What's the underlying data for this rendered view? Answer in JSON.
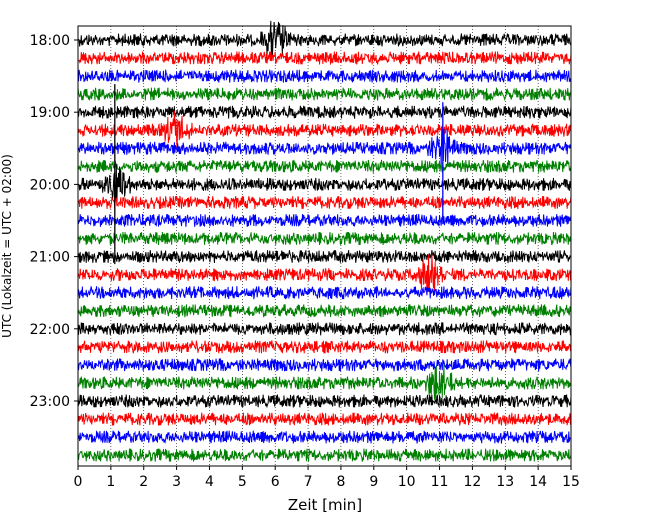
{
  "chart_data": {
    "type": "line",
    "title": "",
    "xlabel": "Zeit  [min]",
    "ylabel": "UTC (Lokalzeit = UTC + 02:00)",
    "xlim": [
      0,
      15
    ],
    "x_ticks": [
      "0",
      "1",
      "2",
      "3",
      "4",
      "5",
      "6",
      "7",
      "8",
      "9",
      "10",
      "11",
      "12",
      "13",
      "14",
      "15"
    ],
    "y_ticks": [
      "18:00",
      "19:00",
      "20:00",
      "21:00",
      "22:00",
      "23:00"
    ],
    "trace_start": "18:00",
    "trace_end": "23:45",
    "trace_interval_min": 15,
    "x_grid": "dotted",
    "color_cycle": [
      "#000000",
      "#ff0000",
      "#0000ff",
      "#008000"
    ],
    "events": [
      {
        "time": "20:00",
        "minute": 1.2,
        "color": "#000000"
      },
      {
        "time": "19:30",
        "minute": 11.1,
        "color": "#0000ff"
      },
      {
        "time": "19:15",
        "minute": 3.0,
        "color": "#ff0000"
      },
      {
        "time": "21:15",
        "minute": 10.7,
        "color": "#ff0000"
      },
      {
        "time": "18:00",
        "minute": 6.0,
        "color": "#000000"
      },
      {
        "time": "22:45",
        "minute": 11.0,
        "color": "#0000ff"
      }
    ]
  }
}
